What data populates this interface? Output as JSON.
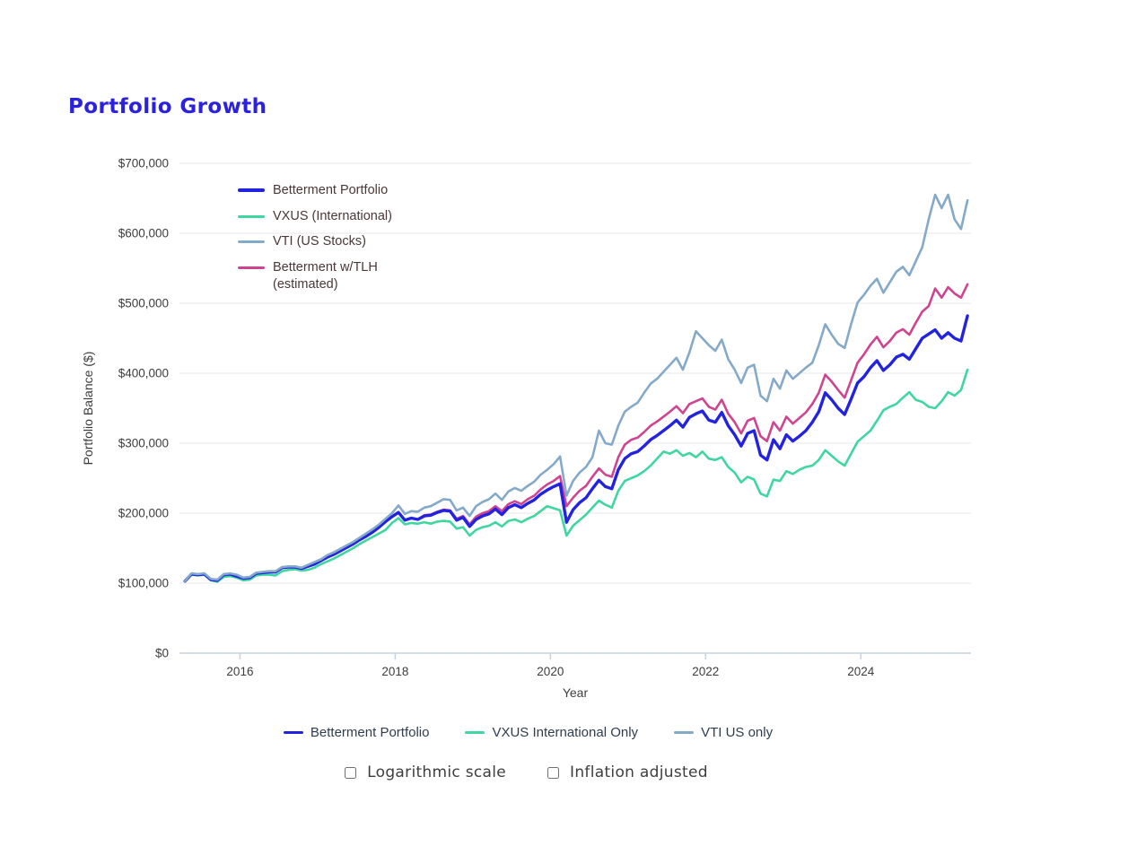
{
  "page": {
    "title": "Portfolio Growth"
  },
  "theme": {
    "background": "#ffffff",
    "title_color": "#2b22df",
    "grid_color": "#e7e7e7",
    "axis_color": "#c7d2df",
    "tick_text_color": "#3d3d3d",
    "inner_legend_text_color": "#4b3737",
    "bottom_legend_text_color": "#2e3d4f",
    "checkbox_label_color": "#3e3e3e"
  },
  "chart_data": {
    "type": "line",
    "title": "Portfolio Growth",
    "xlabel": "Year",
    "ylabel": "Portfolio Balance ($)",
    "x_interval": "monthly",
    "x_start": "2015-04",
    "x_end": "2025-05",
    "xlim": [
      2015.22,
      2025.42
    ],
    "ylim": [
      0,
      700000
    ],
    "x_ticks": [
      2016,
      2018,
      2020,
      2022,
      2024
    ],
    "y_tick_values": [
      0,
      100000,
      200000,
      300000,
      400000,
      500000,
      600000,
      700000
    ],
    "y_tick_labels": [
      "$0",
      "$100,000",
      "$200,000",
      "$300,000",
      "$400,000",
      "$500,000",
      "$600,000",
      "$700,000"
    ],
    "grid": "horizontal",
    "legend_position": "top-left-inside",
    "values_unit": "USD_thousands",
    "draw_order": [
      1,
      3,
      0,
      2
    ],
    "series": [
      {
        "name": "Betterment Portfolio",
        "slug": "betterment-portfolio",
        "legend_label": "Betterment Portfolio",
        "color": "#2222e0",
        "stroke_width": 3.4,
        "values": [
          103,
          113,
          112,
          113,
          105,
          104,
          112,
          113,
          110,
          107,
          108,
          114,
          115,
          116,
          116,
          122,
          123,
          123,
          121,
          124,
          127,
          132,
          137,
          141,
          146,
          151,
          156,
          162,
          167,
          173,
          180,
          188,
          195,
          201,
          190,
          193,
          191,
          196,
          197,
          201,
          204,
          203,
          190,
          194,
          181,
          191,
          196,
          199,
          206,
          198,
          208,
          212,
          208,
          214,
          219,
          227,
          233,
          238,
          242,
          187,
          205,
          215,
          222,
          235,
          247,
          238,
          235,
          262,
          278,
          285,
          288,
          296,
          305,
          311,
          318,
          325,
          333,
          323,
          337,
          342,
          346,
          333,
          330,
          344,
          325,
          312,
          296,
          314,
          318,
          283,
          276,
          305,
          292,
          312,
          303,
          310,
          318,
          330,
          345,
          372,
          362,
          350,
          341,
          363,
          386,
          395,
          408,
          418,
          404,
          412,
          423,
          427,
          420,
          435,
          450,
          456,
          462,
          450,
          458,
          450,
          446,
          482
        ]
      },
      {
        "name": "VXUS (International)",
        "slug": "vxus-international",
        "legend_label": "VXUS (International)",
        "color": "#3fd6a0",
        "stroke_width": 2.6,
        "values": [
          103,
          112,
          111,
          112,
          104,
          102,
          109,
          110,
          108,
          104,
          105,
          111,
          112,
          112,
          111,
          117,
          119,
          120,
          118,
          119,
          122,
          127,
          131,
          135,
          140,
          145,
          150,
          156,
          161,
          166,
          171,
          176,
          186,
          193,
          184,
          186,
          185,
          187,
          185,
          188,
          189,
          188,
          178,
          180,
          168,
          176,
          180,
          182,
          187,
          181,
          189,
          191,
          187,
          192,
          196,
          203,
          210,
          207,
          204,
          168,
          182,
          190,
          198,
          208,
          218,
          212,
          208,
          232,
          246,
          250,
          254,
          260,
          268,
          278,
          288,
          285,
          290,
          282,
          286,
          280,
          288,
          278,
          276,
          280,
          266,
          258,
          244,
          252,
          248,
          228,
          224,
          248,
          246,
          260,
          256,
          262,
          266,
          268,
          276,
          290,
          282,
          274,
          268,
          285,
          302,
          310,
          318,
          332,
          347,
          352,
          356,
          365,
          373,
          362,
          359,
          352,
          350,
          360,
          373,
          368,
          376,
          405
        ]
      },
      {
        "name": "VTI (US Stocks)",
        "slug": "vti-us-stocks",
        "legend_label": "VTI (US Stocks)",
        "color": "#84a9c9",
        "stroke_width": 2.6,
        "values": [
          103,
          114,
          113,
          114,
          106,
          105,
          113,
          114,
          112,
          108,
          109,
          115,
          116,
          117,
          117,
          123,
          124,
          124,
          122,
          126,
          130,
          134,
          140,
          144,
          149,
          154,
          159,
          165,
          171,
          177,
          184,
          192,
          200,
          211,
          199,
          203,
          202,
          208,
          210,
          215,
          220,
          219,
          204,
          208,
          196,
          210,
          216,
          220,
          228,
          219,
          231,
          236,
          232,
          239,
          245,
          255,
          262,
          270,
          281,
          225,
          246,
          258,
          266,
          280,
          318,
          300,
          298,
          325,
          345,
          352,
          358,
          372,
          385,
          392,
          402,
          412,
          422,
          405,
          430,
          460,
          450,
          440,
          432,
          448,
          420,
          405,
          386,
          408,
          412,
          368,
          360,
          392,
          378,
          404,
          392,
          400,
          408,
          415,
          440,
          470,
          455,
          442,
          436,
          470,
          501,
          512,
          525,
          535,
          515,
          530,
          545,
          552,
          540,
          560,
          580,
          620,
          655,
          636,
          655,
          620,
          606,
          647
        ]
      },
      {
        "name": "Betterment w/TLH (estimated)",
        "slug": "betterment-tlh",
        "legend_label": "Betterment w/TLH\n(estimated)",
        "color": "#cf4490",
        "stroke_width": 2.6,
        "values": [
          103,
          113,
          112,
          113,
          105,
          104,
          112,
          113,
          110,
          107,
          108,
          114,
          115,
          116,
          116,
          122,
          123,
          123,
          121,
          124,
          127,
          132,
          137,
          141,
          146,
          151,
          156,
          162,
          167,
          173,
          180,
          188,
          195,
          201,
          190,
          193,
          191,
          197,
          198,
          202,
          205,
          204,
          192,
          196,
          184,
          195,
          200,
          203,
          210,
          203,
          213,
          217,
          213,
          220,
          225,
          234,
          241,
          246,
          253,
          210,
          222,
          232,
          239,
          252,
          264,
          255,
          252,
          280,
          298,
          305,
          308,
          316,
          325,
          331,
          338,
          345,
          353,
          343,
          356,
          360,
          364,
          352,
          348,
          362,
          342,
          330,
          314,
          332,
          336,
          310,
          303,
          330,
          318,
          338,
          328,
          336,
          344,
          356,
          372,
          398,
          388,
          376,
          365,
          390,
          415,
          427,
          441,
          452,
          437,
          446,
          458,
          463,
          455,
          472,
          488,
          496,
          521,
          508,
          523,
          514,
          508,
          527
        ]
      }
    ],
    "bottom_legend": {
      "items": [
        {
          "label": "Betterment Portfolio",
          "color": "#2222e0"
        },
        {
          "label": "VXUS International Only",
          "color": "#3fd6a0"
        },
        {
          "label": "VTI US only",
          "color": "#84a9c9"
        }
      ]
    }
  },
  "controls": {
    "checkboxes": [
      {
        "label": "Logarithmic scale",
        "checked": false
      },
      {
        "label": "Inflation adjusted",
        "checked": false
      }
    ]
  }
}
